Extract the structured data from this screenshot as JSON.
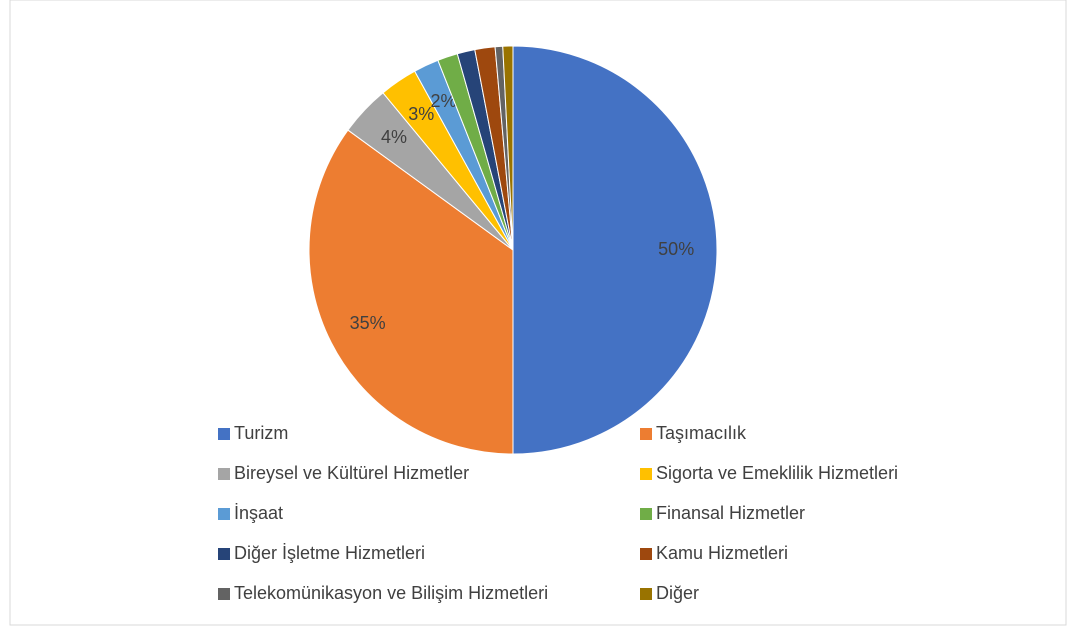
{
  "chart_data": {
    "type": "pie",
    "categories": [
      "Turizm",
      "Taşımacılık",
      "Bireysel ve Kültürel Hizmetler",
      "Sigorta ve Emeklilik Hizmetleri",
      "İnşaat",
      "Finansal Hizmetler",
      "Diğer İşletme Hizmetleri",
      "Kamu Hizmetleri",
      "Telekomünikasyon ve Bilişim Hizmetleri",
      "Diğer"
    ],
    "values": [
      50,
      35,
      4,
      3,
      2,
      1.6,
      1.4,
      1.6,
      0.6,
      0.8
    ],
    "value_labels": [
      "50%",
      "35%",
      "4%",
      "3%",
      "2%",
      null,
      null,
      null,
      null,
      null
    ],
    "colors": [
      "#4472c4",
      "#ed7d31",
      "#a5a5a5",
      "#ffc000",
      "#5b9bd5",
      "#70ad47",
      "#264478",
      "#9e480e",
      "#636363",
      "#997300"
    ],
    "legend": "bottom"
  }
}
